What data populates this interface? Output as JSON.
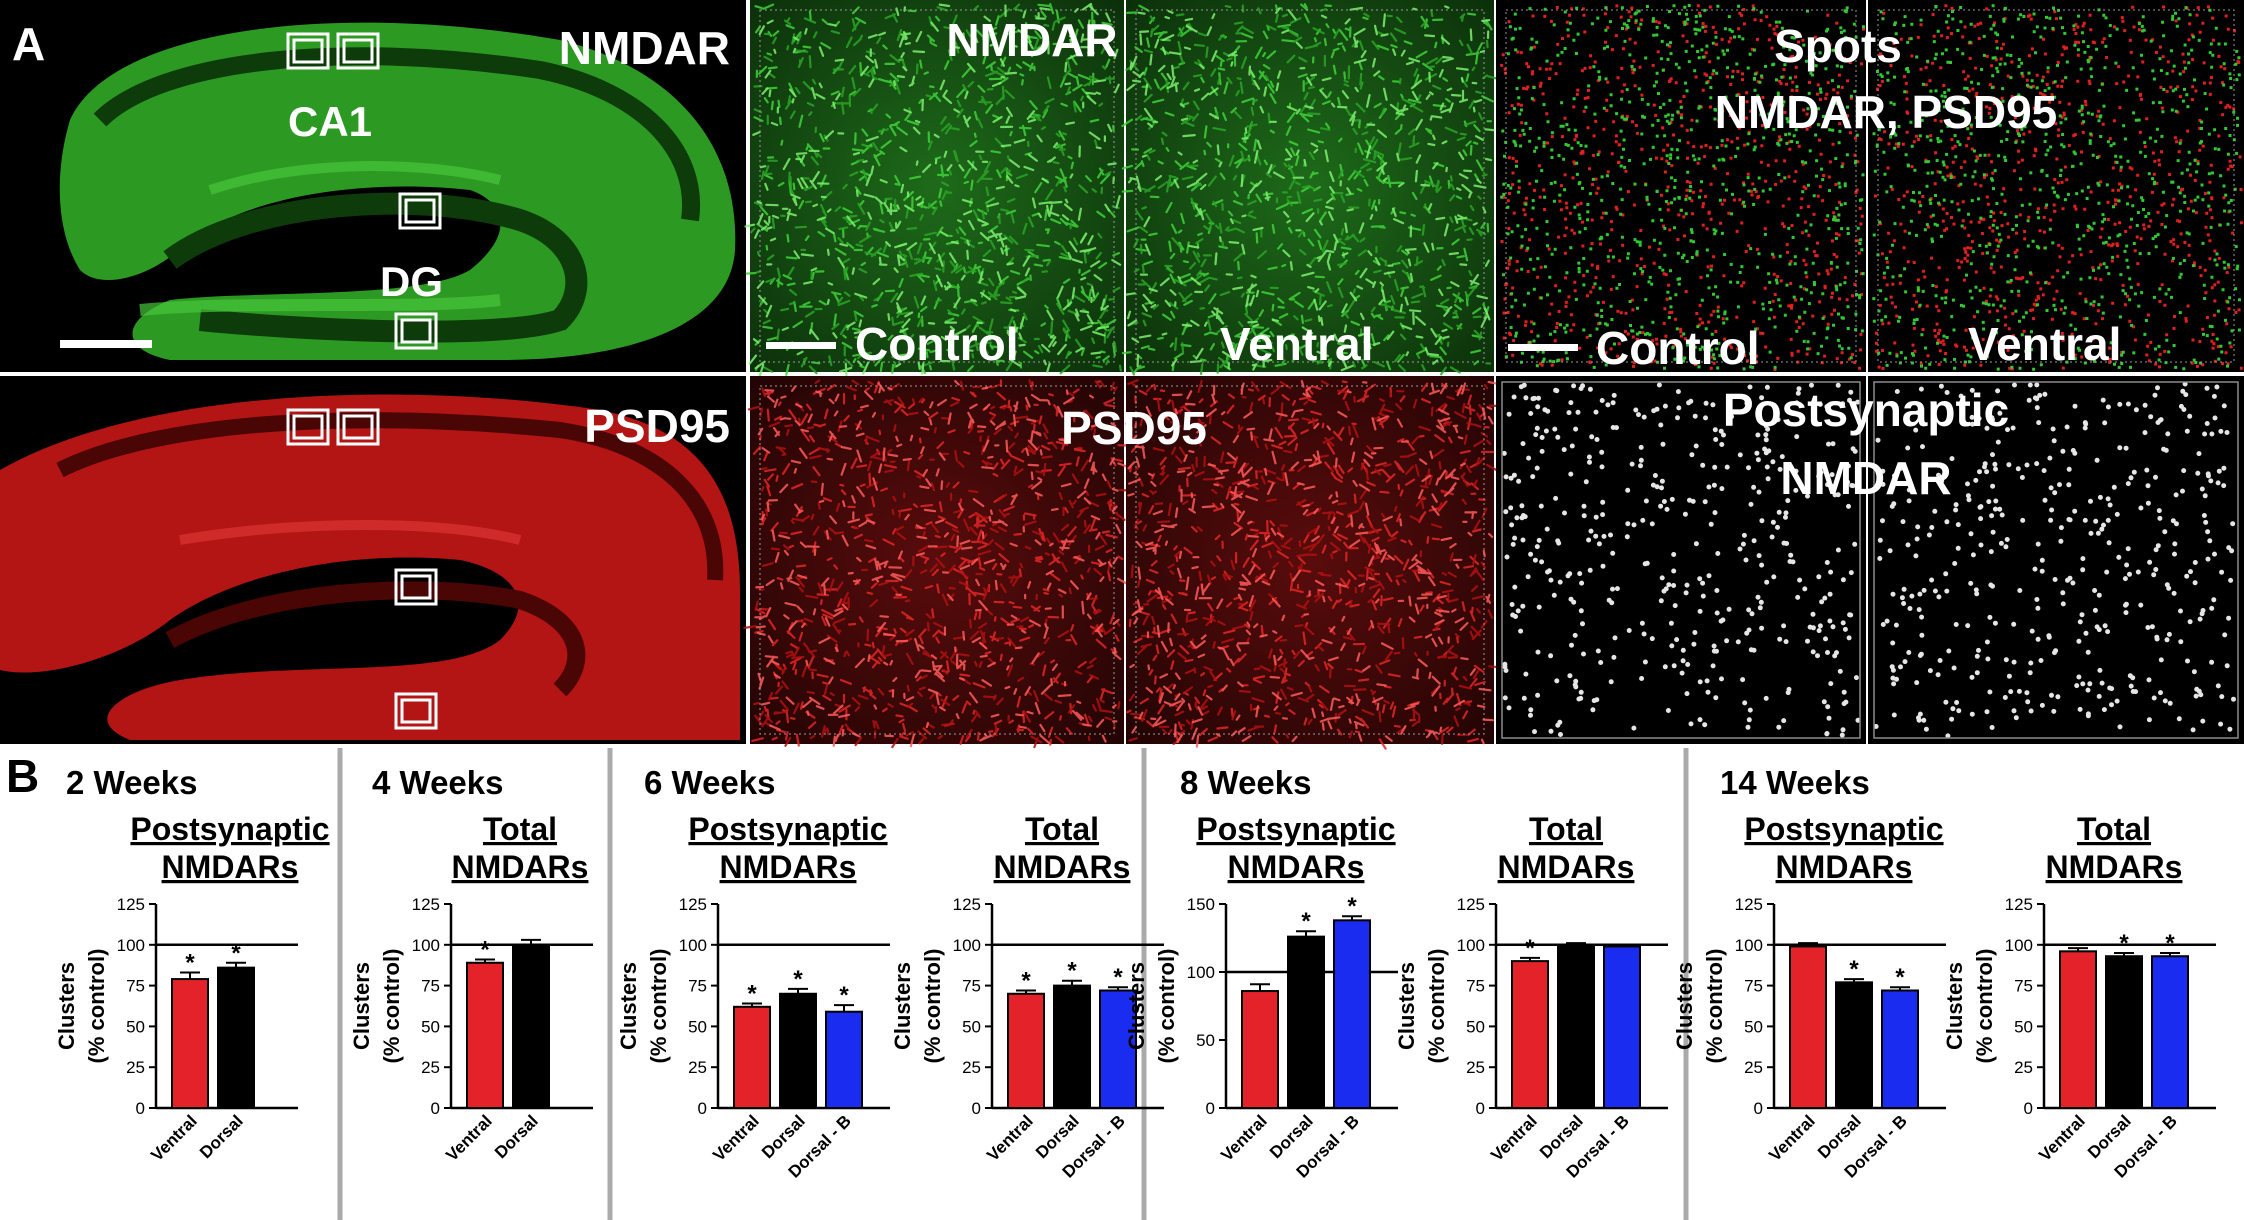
{
  "panel_a": {
    "letter": "A",
    "overview": {
      "nmdar_label": "NMDAR",
      "psd95_label": "PSD95",
      "ca1_label": "CA1",
      "dg_label": "DG"
    },
    "nmdar_row": {
      "title": "NMDAR",
      "control_label": "Control",
      "ventral_label": "Ventral"
    },
    "spots_row": {
      "title_line1": "Spots",
      "title_line2": "NMDAR, PSD95",
      "control_label": "Control",
      "ventral_label": "Ventral"
    },
    "psd95_row": {
      "title": "PSD95"
    },
    "postsyn_row": {
      "title_line1": "Postsynaptic",
      "title_line2": "NMDAR"
    }
  },
  "panel_b": {
    "letter": "B",
    "y_axis_label_line1": "Clusters",
    "y_axis_label_line2": "(% control)",
    "colors": {
      "ventral": "#e3222a",
      "dorsal": "#000000",
      "dorsal_b": "#1a2cf0"
    }
  },
  "chart_data": [
    {
      "type": "bar",
      "group": "2 Weeks",
      "title_line1": "Postsynaptic",
      "title_line2": "NMDARs",
      "categories": [
        "Ventral",
        "Dorsal"
      ],
      "values": [
        79,
        86
      ],
      "errors": [
        4,
        3
      ],
      "significant": [
        true,
        true
      ],
      "ylim": [
        0,
        125
      ],
      "yticks": [
        0,
        25,
        50,
        75,
        100,
        125
      ],
      "reference_line": 100
    },
    {
      "type": "bar",
      "group": "4 Weeks",
      "title_line1": "Total",
      "title_line2": "NMDARs",
      "categories": [
        "Ventral",
        "Dorsal"
      ],
      "values": [
        89,
        100
      ],
      "errors": [
        2,
        3
      ],
      "significant": [
        true,
        false
      ],
      "ylim": [
        0,
        125
      ],
      "yticks": [
        0,
        25,
        50,
        75,
        100,
        125
      ],
      "reference_line": 100
    },
    {
      "type": "bar",
      "group": "6 Weeks",
      "title_line1": "Postsynaptic",
      "title_line2": "NMDARs",
      "categories": [
        "Ventral",
        "Dorsal",
        "Dorsal - B"
      ],
      "values": [
        62,
        70,
        59
      ],
      "errors": [
        2,
        3,
        4
      ],
      "significant": [
        true,
        true,
        true
      ],
      "ylim": [
        0,
        125
      ],
      "yticks": [
        0,
        25,
        50,
        75,
        100,
        125
      ],
      "reference_line": 100
    },
    {
      "type": "bar",
      "group": "",
      "title_line1": "Total",
      "title_line2": "NMDARs",
      "categories": [
        "Ventral",
        "Dorsal",
        "Dorsal - B"
      ],
      "values": [
        70,
        75,
        72
      ],
      "errors": [
        2,
        3,
        2
      ],
      "significant": [
        true,
        true,
        true
      ],
      "ylim": [
        0,
        125
      ],
      "yticks": [
        0,
        25,
        50,
        75,
        100,
        125
      ],
      "reference_line": 100
    },
    {
      "type": "bar",
      "group": "8 Weeks",
      "title_line1": "Postsynaptic",
      "title_line2": "NMDARs",
      "categories": [
        "Ventral",
        "Dorsal",
        "Dorsal - B"
      ],
      "values": [
        86,
        126,
        138
      ],
      "errors": [
        5,
        4,
        3
      ],
      "significant": [
        false,
        true,
        true
      ],
      "ylim": [
        0,
        150
      ],
      "yticks": [
        0,
        50,
        100,
        150
      ],
      "reference_line": 100
    },
    {
      "type": "bar",
      "group": "",
      "title_line1": "Total",
      "title_line2": "NMDARs",
      "categories": [
        "Ventral",
        "Dorsal",
        "Dorsal - B"
      ],
      "values": [
        90,
        100,
        99
      ],
      "errors": [
        2,
        1,
        1
      ],
      "significant": [
        true,
        false,
        false
      ],
      "ylim": [
        0,
        125
      ],
      "yticks": [
        0,
        25,
        50,
        75,
        100,
        125
      ],
      "reference_line": 100
    },
    {
      "type": "bar",
      "group": "14 Weeks",
      "title_line1": "Postsynaptic",
      "title_line2": "NMDARs",
      "categories": [
        "Ventral",
        "Dorsal",
        "Dorsal - B"
      ],
      "values": [
        99,
        77,
        72
      ],
      "errors": [
        2,
        2,
        2
      ],
      "significant": [
        false,
        true,
        true
      ],
      "ylim": [
        0,
        125
      ],
      "yticks": [
        0,
        25,
        50,
        75,
        100,
        125
      ],
      "reference_line": 100
    },
    {
      "type": "bar",
      "group": "",
      "title_line1": "Total",
      "title_line2": "NMDARs",
      "categories": [
        "Ventral",
        "Dorsal",
        "Dorsal - B"
      ],
      "values": [
        96,
        93,
        93
      ],
      "errors": [
        2,
        2,
        2
      ],
      "significant": [
        false,
        true,
        true
      ],
      "ylim": [
        0,
        125
      ],
      "yticks": [
        0,
        25,
        50,
        75,
        100,
        125
      ],
      "reference_line": 100
    }
  ]
}
